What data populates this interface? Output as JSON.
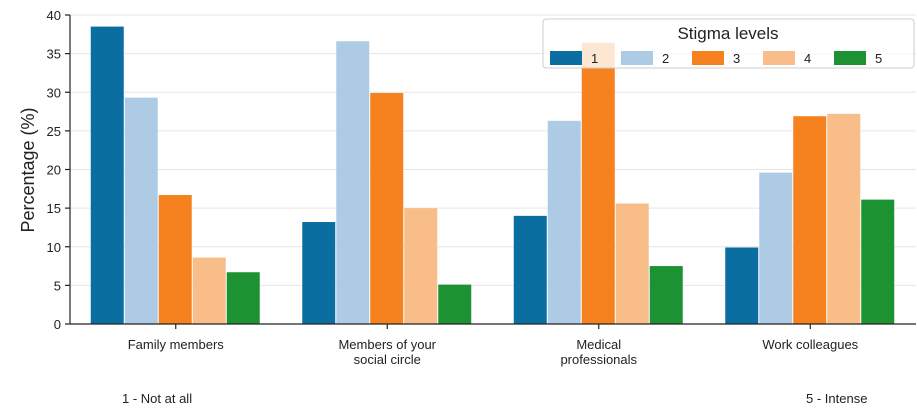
{
  "chart_data": {
    "type": "bar",
    "title": "",
    "xlabel": "",
    "ylabel": "Percentage (%)",
    "ylim": [
      0,
      40
    ],
    "yticks": [
      0,
      5,
      10,
      15,
      20,
      25,
      30,
      35,
      40
    ],
    "grid": true,
    "legend_title": "Stigma levels",
    "legend_position": "top-right",
    "categories": [
      [
        "Family members"
      ],
      [
        "Members of your",
        "social circle"
      ],
      [
        "Medical",
        "professionals"
      ],
      [
        "Work colleagues"
      ]
    ],
    "series": [
      {
        "name": "1",
        "color": "#0A6EA0",
        "values": [
          38.5,
          13.2,
          14.0,
          9.9
        ]
      },
      {
        "name": "2",
        "color": "#AECBE6",
        "values": [
          29.3,
          36.6,
          26.3,
          19.6
        ]
      },
      {
        "name": "3",
        "color": "#F5811F",
        "values": [
          16.7,
          29.9,
          36.4,
          26.9
        ]
      },
      {
        "name": "4",
        "color": "#F9BD8A",
        "values": [
          8.6,
          15.0,
          15.6,
          27.2
        ]
      },
      {
        "name": "5",
        "color": "#1C9232",
        "values": [
          6.7,
          5.1,
          7.5,
          16.1
        ]
      }
    ]
  },
  "footnotes": {
    "left": "1 - Not at all",
    "right": "5 - Intense"
  }
}
